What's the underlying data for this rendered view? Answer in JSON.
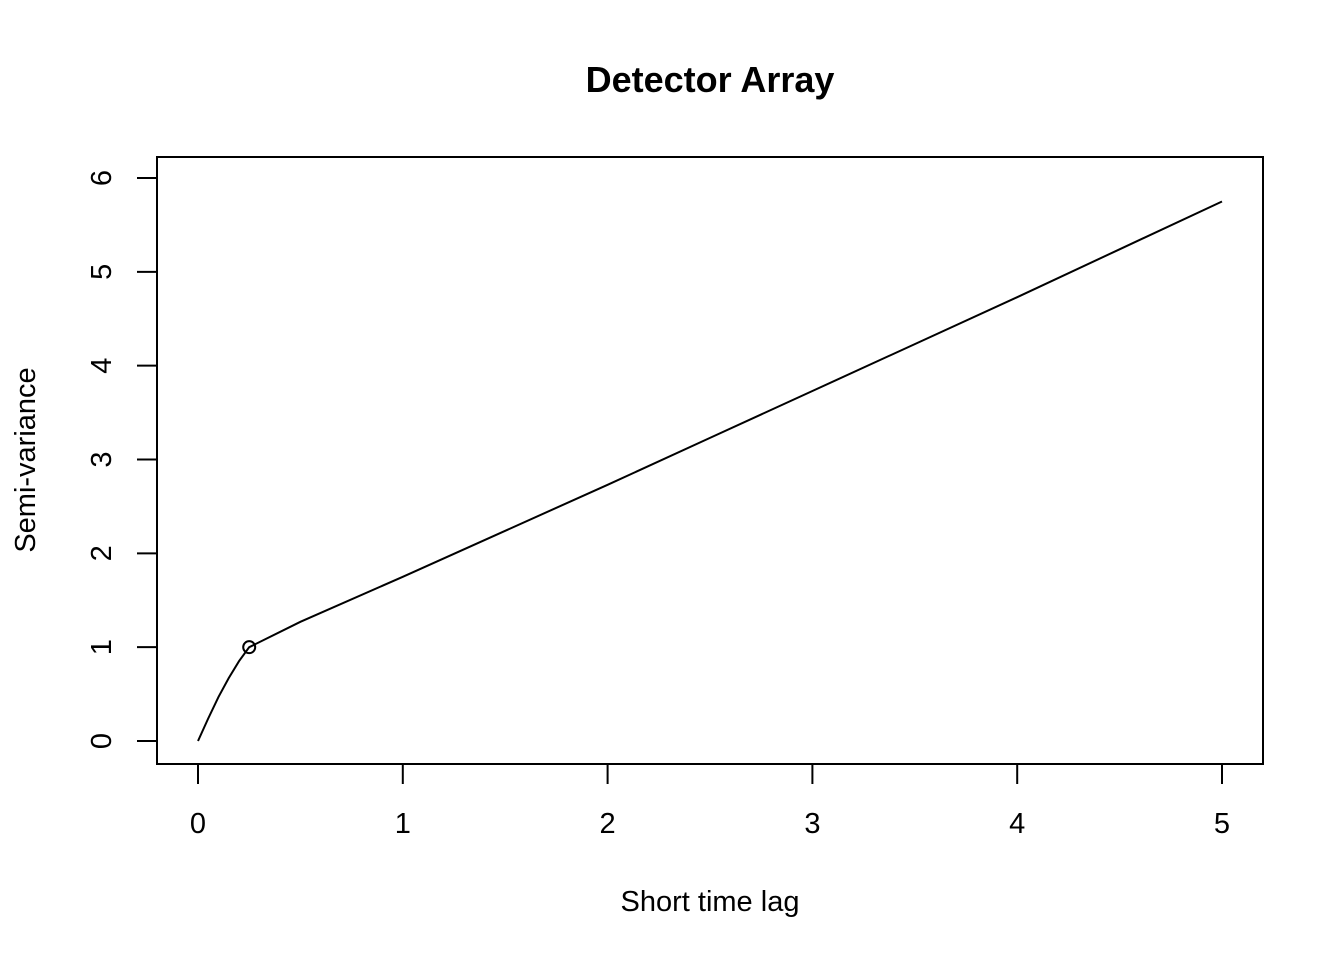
{
  "chart_data": {
    "type": "line",
    "title": "Detector Array",
    "xlabel": "Short time lag",
    "ylabel": "Semi-variance",
    "xlim": [
      0,
      5
    ],
    "ylim": [
      0,
      6
    ],
    "x_ticks": [
      0,
      1,
      2,
      3,
      4,
      5
    ],
    "y_ticks": [
      0,
      1,
      2,
      3,
      4,
      5,
      6
    ],
    "grid": false,
    "legend": "none",
    "series": [
      {
        "x": [
          0,
          0.05,
          0.1,
          0.15,
          0.2,
          0.25,
          0.5,
          1,
          1.5,
          2,
          2.5,
          3,
          3.5,
          4,
          4.5,
          5
        ],
        "y": [
          0,
          0.24,
          0.47,
          0.67,
          0.85,
          1.0,
          1.27,
          1.75,
          2.24,
          2.73,
          3.23,
          3.73,
          4.23,
          4.73,
          5.24,
          5.75
        ]
      }
    ],
    "markers": [
      {
        "x": 0.25,
        "y": 1.0,
        "shape": "open-circle"
      }
    ]
  }
}
